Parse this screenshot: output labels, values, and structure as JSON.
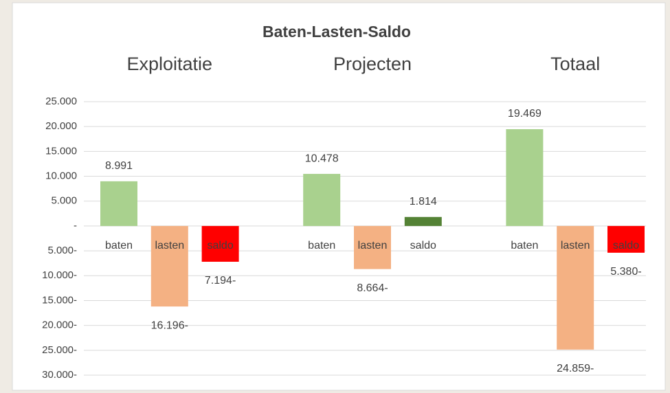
{
  "chart_data": {
    "type": "bar",
    "title": "Baten-Lasten-Saldo",
    "groups": [
      "Exploitatie",
      "Projecten",
      "Totaal"
    ],
    "categories": [
      "baten",
      "lasten",
      "saldo",
      "baten",
      "lasten",
      "saldo",
      "baten",
      "lasten",
      "saldo"
    ],
    "values": [
      8991,
      -16196,
      -7194,
      10478,
      -8664,
      1814,
      19469,
      -24859,
      -5380
    ],
    "value_labels": [
      "8.991",
      "16.196-",
      "7.194-",
      "10.478",
      "8.664-",
      "1.814",
      "19.469",
      "24.859-",
      "5.380-"
    ],
    "colors": [
      "#a9d18e",
      "#f4b183",
      "#ff0000",
      "#a9d18e",
      "#f4b183",
      "#548235",
      "#a9d18e",
      "#f4b183",
      "#ff0000"
    ],
    "ylim": [
      -30000,
      25000
    ],
    "yticks": [
      {
        "value": 25000,
        "label": "25.000"
      },
      {
        "value": 20000,
        "label": "20.000"
      },
      {
        "value": 15000,
        "label": "15.000"
      },
      {
        "value": 10000,
        "label": "10.000"
      },
      {
        "value": 5000,
        "label": "5.000"
      },
      {
        "value": 0,
        "label": "-"
      },
      {
        "value": -5000,
        "label": "5.000-"
      },
      {
        "value": -10000,
        "label": "10.000-"
      },
      {
        "value": -15000,
        "label": "15.000-"
      },
      {
        "value": -20000,
        "label": "20.000-"
      },
      {
        "value": -25000,
        "label": "25.000-"
      },
      {
        "value": -30000,
        "label": "30.000-"
      }
    ],
    "grid": true
  }
}
